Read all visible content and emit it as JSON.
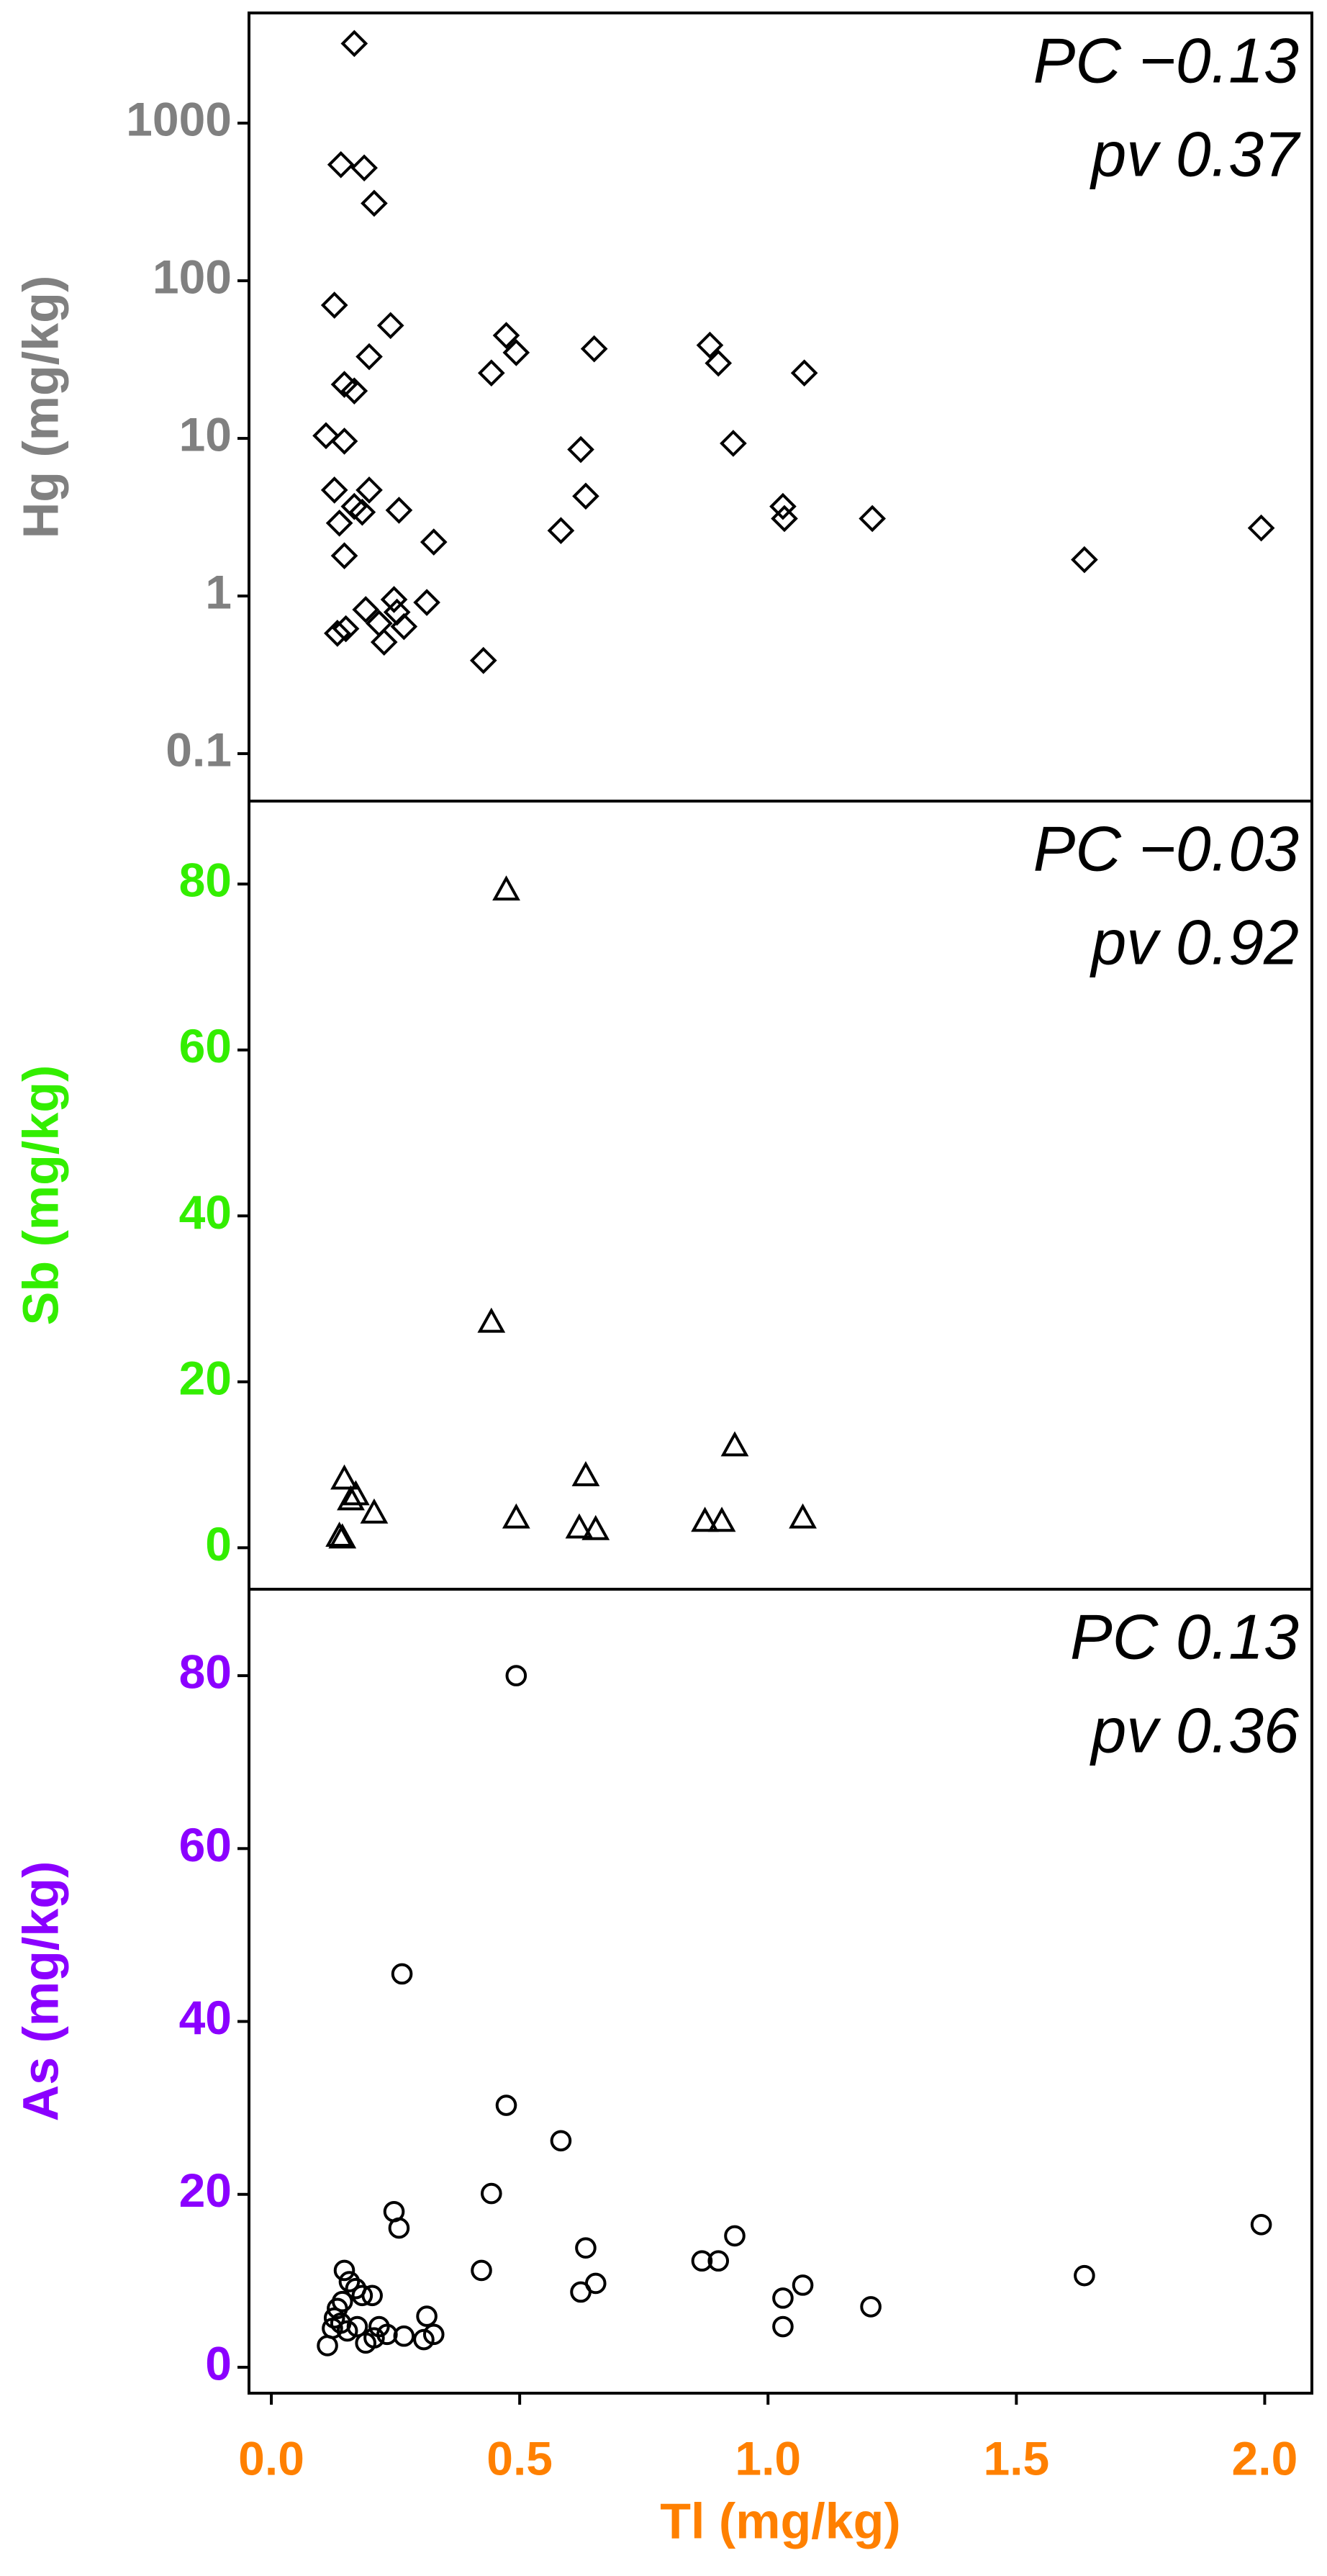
{
  "chart_data": [
    {
      "type": "scatter",
      "ylabel": "Hg (mg/kg)",
      "axis_color": "#808080",
      "log_y": true,
      "marker": "diamond",
      "color": "#000000",
      "annotations": [
        "PC −0.13",
        "pv 0.37"
      ],
      "xlim": [
        -0.045,
        2.095
      ],
      "ylim": [
        0.05,
        5000
      ],
      "yticks": [
        0.1,
        1,
        10,
        100,
        1000
      ],
      "x": [
        0.167,
        0.14,
        0.187,
        0.207,
        0.127,
        0.24,
        0.197,
        0.147,
        0.167,
        0.11,
        0.147,
        0.443,
        0.473,
        0.493,
        0.65,
        0.883,
        0.9,
        1.073,
        0.623,
        0.93,
        0.127,
        0.197,
        0.167,
        0.183,
        0.257,
        0.137,
        0.327,
        0.147,
        0.633,
        0.583,
        1.03,
        1.033,
        1.21,
        1.637,
        1.993,
        0.133,
        0.15,
        0.19,
        0.217,
        0.227,
        0.247,
        0.267,
        0.253,
        0.313,
        0.427
      ],
      "y": [
        3200,
        545,
        520,
        310,
        70,
        52,
        33,
        22,
        20,
        10.4,
        9.6,
        26,
        45,
        35,
        37,
        39,
        30,
        26,
        8.5,
        9.3,
        4.7,
        4.7,
        3.7,
        3.4,
        3.5,
        2.9,
        2.2,
        1.8,
        4.3,
        2.6,
        3.7,
        3.1,
        3.1,
        1.7,
        2.7,
        0.58,
        0.62,
        0.82,
        0.67,
        0.51,
        0.95,
        0.64,
        0.79,
        0.91,
        0.39
      ]
    },
    {
      "type": "scatter",
      "ylabel": "Sb (mg/kg)",
      "axis_color": "#33ee00",
      "marker": "triangle",
      "color": "#000000",
      "annotations": [
        "PC −0.03",
        "pv 0.92"
      ],
      "xlim": [
        -0.045,
        2.095
      ],
      "ylim": [
        -5,
        90
      ],
      "yticks": [
        0,
        20,
        40,
        60,
        80
      ],
      "x": [
        0.473,
        0.443,
        0.147,
        0.16,
        0.17,
        0.207,
        0.137,
        0.143,
        0.493,
        0.633,
        0.62,
        0.653,
        0.873,
        0.907,
        0.933,
        1.07
      ],
      "y": [
        79.3,
        27.2,
        8.3,
        5.8,
        6.4,
        4.2,
        1.4,
        1.2,
        3.6,
        8.7,
        2.4,
        2.2,
        3.2,
        3.2,
        12.3,
        3.6
      ]
    },
    {
      "type": "scatter",
      "ylabel": "As (mg/kg)",
      "axis_color": "#8b00ff",
      "marker": "circle",
      "color": "#000000",
      "annotations": [
        "PC 0.13",
        "pv 0.36"
      ],
      "xlim": [
        -0.045,
        2.095
      ],
      "ylim": [
        -3,
        90
      ],
      "yticks": [
        0,
        20,
        40,
        60,
        80
      ],
      "xlabel": "Tl (mg/kg)",
      "xaxis_color": "#ff8000",
      "xticks": [
        {
          "value": 0,
          "label": "0.0"
        },
        0.5,
        {
          "value": 1,
          "label": "1.0"
        },
        1.5,
        {
          "value": 2,
          "label": "2.0"
        }
      ],
      "x": [
        0.493,
        0.263,
        0.473,
        0.583,
        0.443,
        0.247,
        0.257,
        0.423,
        0.933,
        0.867,
        0.9,
        0.633,
        0.623,
        0.653,
        1.07,
        1.03,
        1.03,
        1.207,
        1.637,
        1.993,
        0.147,
        0.157,
        0.17,
        0.183,
        0.203,
        0.127,
        0.133,
        0.143,
        0.123,
        0.113,
        0.153,
        0.173,
        0.19,
        0.217,
        0.233,
        0.207,
        0.267,
        0.307,
        0.313,
        0.327,
        0.14
      ],
      "y": [
        80,
        45.5,
        30.3,
        26.2,
        20.1,
        18,
        16.1,
        11.2,
        15.2,
        12.3,
        12.3,
        13.8,
        8.7,
        9.7,
        9.5,
        8,
        4.7,
        7,
        10.6,
        16.5,
        11.2,
        9.9,
        9.1,
        8.3,
        8.3,
        5.7,
        6.8,
        7.6,
        4.5,
        2.5,
        4.2,
        4.7,
        2.8,
        4.7,
        3.8,
        3.4,
        3.6,
        3.2,
        5.9,
        3.8,
        5.1
      ]
    }
  ]
}
